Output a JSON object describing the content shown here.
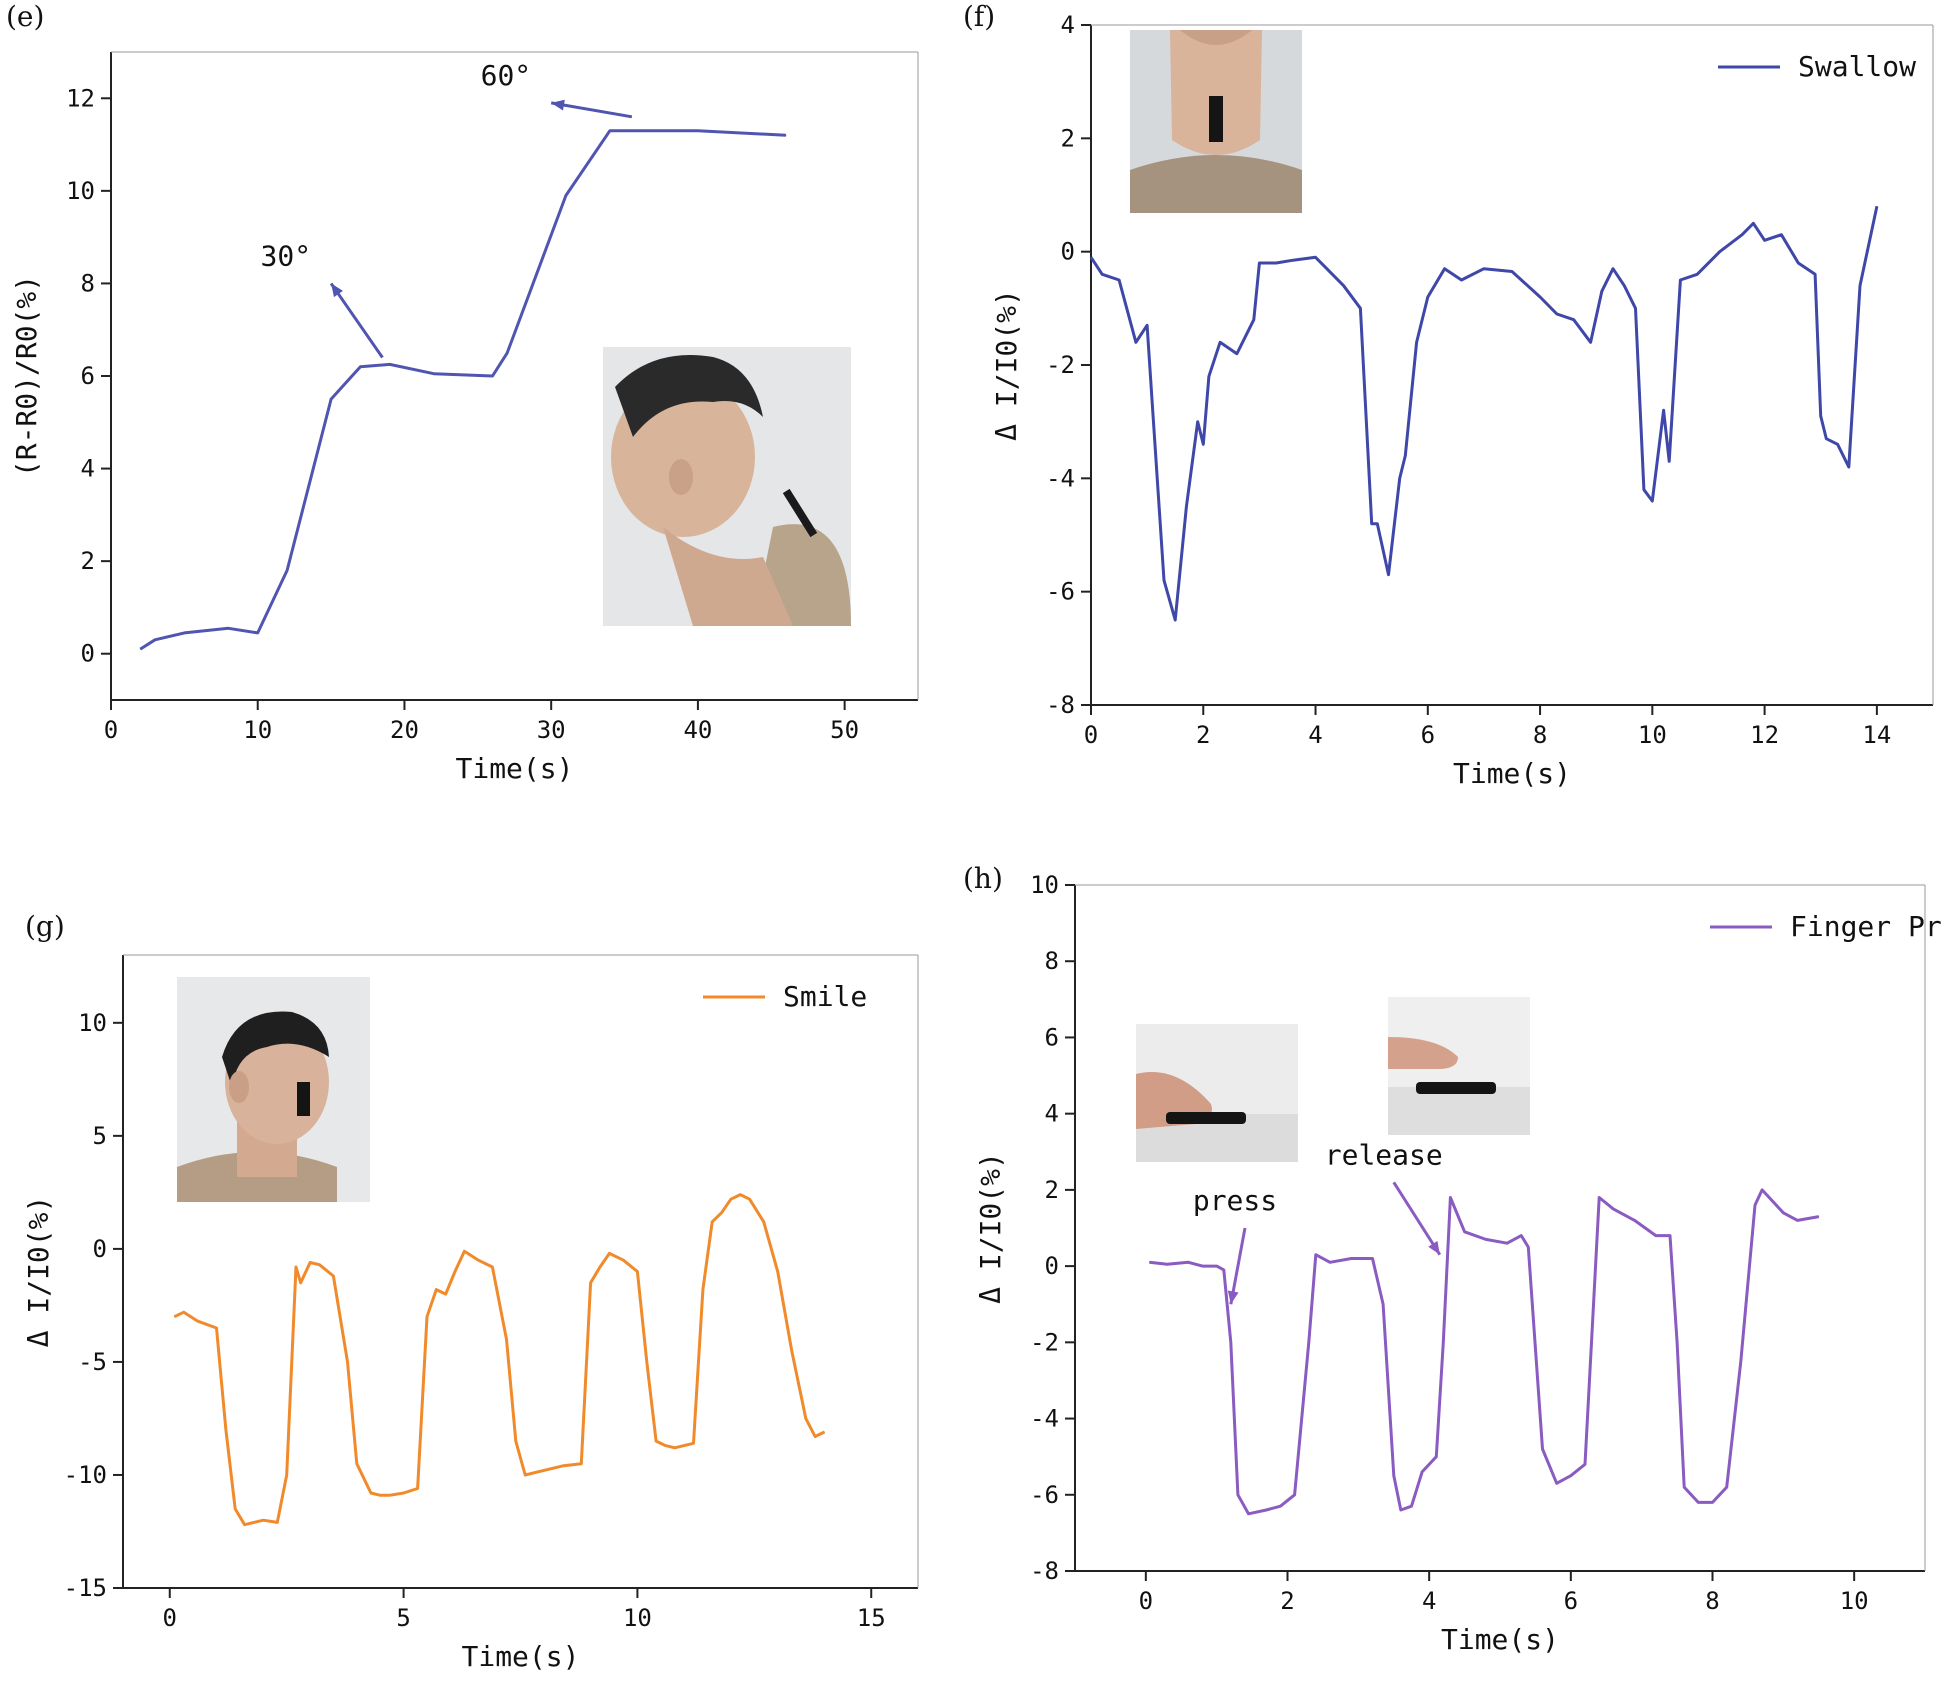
{
  "chart_data": [
    {
      "panel": "(e)",
      "type": "line",
      "title": "",
      "xlabel": "Time(s)",
      "ylabel": "(R-R0)/R0(%)",
      "xlim": [
        0,
        55
      ],
      "ylim": [
        -1,
        13
      ],
      "xticks": [
        0,
        10,
        20,
        30,
        40,
        50
      ],
      "yticks": [
        0,
        2,
        4,
        6,
        8,
        10,
        12
      ],
      "legend": "",
      "color": "#4f55b0",
      "annotations": [
        {
          "text": "30°",
          "from": [
            18.5,
            6.4
          ],
          "to": [
            15,
            8.0
          ]
        },
        {
          "text": "60°",
          "from": [
            35.5,
            11.6
          ],
          "to": [
            30,
            11.9
          ]
        }
      ],
      "inset": "photo-head-bent-with-sensor-on-neck",
      "x": [
        2,
        3,
        5,
        8,
        10,
        12,
        15,
        17,
        19,
        22,
        26,
        27,
        31,
        34,
        40,
        46
      ],
      "y": [
        0.1,
        0.3,
        0.45,
        0.55,
        0.45,
        1.8,
        5.5,
        6.2,
        6.25,
        6.05,
        6.0,
        6.5,
        9.9,
        11.3,
        11.3,
        11.2
      ]
    },
    {
      "panel": "(f)",
      "type": "line",
      "title": "",
      "xlabel": "Time(s)",
      "ylabel": "Δ I/I0(%)",
      "xlim": [
        0,
        15
      ],
      "ylim": [
        -8,
        4
      ],
      "xticks": [
        0,
        2,
        4,
        6,
        8,
        10,
        12,
        14
      ],
      "yticks": [
        -8,
        -6,
        -4,
        -2,
        0,
        2,
        4
      ],
      "legend": "Swallow",
      "color": "#3f47a8",
      "inset": "photo-throat-with-sensor",
      "x": [
        0,
        0.2,
        0.5,
        0.8,
        1.0,
        1.1,
        1.3,
        1.5,
        1.7,
        1.9,
        2.0,
        2.1,
        2.3,
        2.6,
        2.9,
        3.0,
        3.3,
        3.6,
        4.0,
        4.2,
        4.5,
        4.8,
        5.0,
        5.1,
        5.3,
        5.5,
        5.6,
        5.8,
        6.0,
        6.3,
        6.6,
        7.0,
        7.5,
        8.0,
        8.3,
        8.6,
        8.9,
        9.1,
        9.3,
        9.5,
        9.7,
        9.85,
        10.0,
        10.2,
        10.3,
        10.5,
        10.8,
        11.2,
        11.6,
        11.8,
        12.0,
        12.3,
        12.6,
        12.9,
        13.0,
        13.1,
        13.3,
        13.5,
        13.7,
        14.0
      ],
      "y": [
        -0.1,
        -0.4,
        -0.5,
        -1.6,
        -1.3,
        -2.8,
        -5.8,
        -6.5,
        -4.5,
        -3.0,
        -3.4,
        -2.2,
        -1.6,
        -1.8,
        -1.2,
        -0.2,
        -0.2,
        -0.15,
        -0.1,
        -0.3,
        -0.6,
        -1.0,
        -4.8,
        -4.8,
        -5.7,
        -4.0,
        -3.6,
        -1.6,
        -0.8,
        -0.3,
        -0.5,
        -0.3,
        -0.35,
        -0.8,
        -1.1,
        -1.2,
        -1.6,
        -0.7,
        -0.3,
        -0.6,
        -1.0,
        -4.2,
        -4.4,
        -2.8,
        -3.7,
        -0.5,
        -0.4,
        0.0,
        0.3,
        0.5,
        0.2,
        0.3,
        -0.2,
        -0.4,
        -2.9,
        -3.3,
        -3.4,
        -3.8,
        -0.6,
        0.8
      ]
    },
    {
      "panel": "(g)",
      "type": "line",
      "title": "",
      "xlabel": "Time(s)",
      "ylabel": "Δ I/I0(%)",
      "xlim": [
        -1,
        16
      ],
      "ylim": [
        -15,
        13
      ],
      "xticks": [
        0,
        5,
        10,
        15
      ],
      "yticks": [
        -15,
        -10,
        -5,
        0,
        5,
        10
      ],
      "legend": "Smile",
      "color": "#f08a2b",
      "inset": "photo-face-profile-with-sensor-on-cheek",
      "x": [
        0.1,
        0.3,
        0.6,
        1.0,
        1.2,
        1.4,
        1.6,
        1.8,
        2.0,
        2.3,
        2.5,
        2.7,
        2.8,
        3.0,
        3.2,
        3.5,
        3.8,
        4.0,
        4.3,
        4.5,
        4.7,
        5.0,
        5.3,
        5.5,
        5.7,
        5.9,
        6.1,
        6.3,
        6.6,
        6.9,
        7.2,
        7.4,
        7.6,
        7.8,
        8.0,
        8.4,
        8.8,
        9.0,
        9.2,
        9.4,
        9.7,
        10.0,
        10.2,
        10.4,
        10.6,
        10.8,
        11.2,
        11.4,
        11.6,
        11.8,
        12.0,
        12.2,
        12.4,
        12.7,
        13.0,
        13.3,
        13.6,
        13.8,
        14.0
      ],
      "y": [
        -3.0,
        -2.8,
        -3.2,
        -3.5,
        -8.0,
        -11.5,
        -12.2,
        -12.1,
        -12.0,
        -12.1,
        -10.0,
        -0.8,
        -1.5,
        -0.6,
        -0.7,
        -1.2,
        -5.0,
        -9.5,
        -10.8,
        -10.9,
        -10.9,
        -10.8,
        -10.6,
        -3.0,
        -1.8,
        -2.0,
        -1.0,
        -0.1,
        -0.5,
        -0.8,
        -4.0,
        -8.5,
        -10.0,
        -9.9,
        -9.8,
        -9.6,
        -9.5,
        -1.5,
        -0.8,
        -0.2,
        -0.5,
        -1.0,
        -5.0,
        -8.5,
        -8.7,
        -8.8,
        -8.6,
        -1.8,
        1.2,
        1.6,
        2.2,
        2.4,
        2.2,
        1.2,
        -1.0,
        -4.5,
        -7.5,
        -8.3,
        -8.1
      ]
    },
    {
      "panel": "(h)",
      "type": "line",
      "title": "",
      "xlabel": "Time(s)",
      "ylabel": "Δ I/I0(%)",
      "xlim": [
        -1,
        11
      ],
      "ylim": [
        -8,
        10
      ],
      "xticks": [
        0,
        2,
        4,
        6,
        8,
        10
      ],
      "yticks": [
        -8,
        -6,
        -4,
        -2,
        0,
        2,
        4,
        6,
        8,
        10
      ],
      "legend": "Finger Pressing",
      "color": "#8a5bc0",
      "annotations": [
        {
          "text": "press",
          "from": [
            1.4,
            1.0
          ],
          "to": [
            1.2,
            -1.0
          ]
        },
        {
          "text": "release",
          "from": [
            3.5,
            2.2
          ],
          "to": [
            4.15,
            0.3
          ]
        }
      ],
      "insets": [
        "photo-finger-pressing-sensor",
        "photo-finger-released-above-sensor"
      ],
      "x": [
        0.05,
        0.3,
        0.6,
        0.8,
        1.0,
        1.1,
        1.2,
        1.3,
        1.45,
        1.7,
        1.9,
        2.1,
        2.3,
        2.4,
        2.6,
        2.9,
        3.2,
        3.35,
        3.5,
        3.6,
        3.75,
        3.9,
        4.1,
        4.2,
        4.3,
        4.5,
        4.8,
        5.1,
        5.3,
        5.4,
        5.6,
        5.8,
        6.0,
        6.2,
        6.4,
        6.6,
        6.9,
        7.2,
        7.4,
        7.5,
        7.6,
        7.8,
        8.0,
        8.2,
        8.4,
        8.6,
        8.7,
        8.8,
        9.0,
        9.2,
        9.5
      ],
      "y": [
        0.1,
        0.05,
        0.1,
        0.0,
        0.0,
        -0.1,
        -2.0,
        -6.0,
        -6.5,
        -6.4,
        -6.3,
        -6.0,
        -2.0,
        0.3,
        0.1,
        0.2,
        0.2,
        -1.0,
        -5.5,
        -6.4,
        -6.3,
        -5.4,
        -5.0,
        -2.0,
        1.8,
        0.9,
        0.7,
        0.6,
        0.8,
        0.5,
        -4.8,
        -5.7,
        -5.5,
        -5.2,
        1.8,
        1.5,
        1.2,
        0.8,
        0.8,
        -2.0,
        -5.8,
        -6.2,
        -6.2,
        -5.8,
        -2.5,
        1.6,
        2.0,
        1.8,
        1.4,
        1.2,
        1.3
      ]
    }
  ]
}
